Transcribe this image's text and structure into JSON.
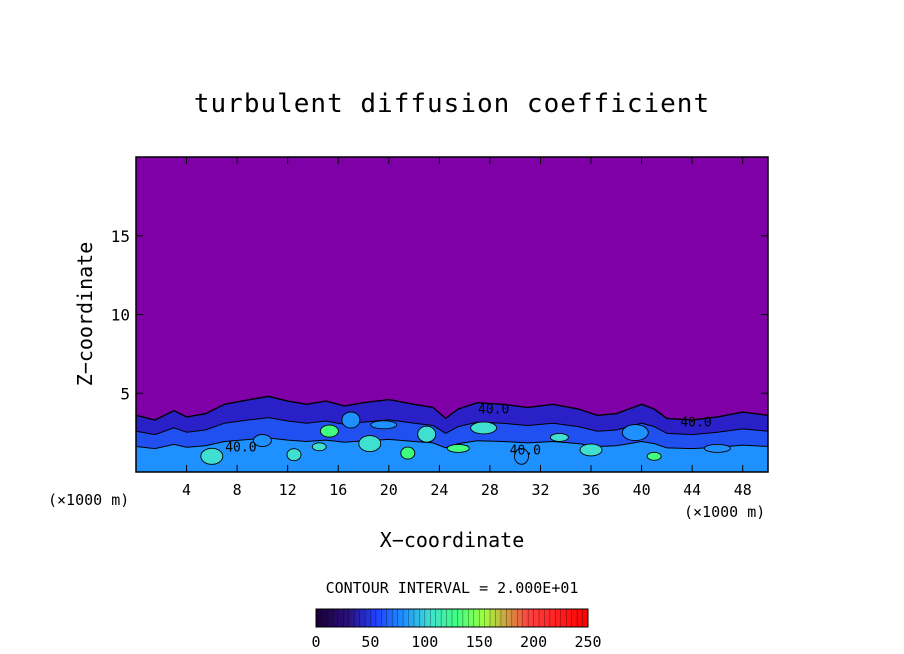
{
  "chart_data": {
    "type": "heatmap",
    "title": "turbulent diffusion coefficient",
    "xlabel": "X−coordinate",
    "ylabel": "Z−coordinate",
    "x_unit_left": "(×1000 m)",
    "x_unit_right": "(×1000 m)",
    "xlim": [
      0,
      50
    ],
    "ylim": [
      0,
      20
    ],
    "x_ticks": [
      4,
      8,
      12,
      16,
      20,
      24,
      28,
      32,
      36,
      40,
      44,
      48
    ],
    "y_ticks": [
      5,
      10,
      15
    ],
    "contour_interval_text": "CONTOUR INTERVAL = 2.000E+01",
    "contour_labels": [
      {
        "text": "40.0",
        "x": 28.3,
        "z": 3.7
      },
      {
        "text": "40.0",
        "x": 30.8,
        "z": 1.1
      },
      {
        "text": "40.0",
        "x": 8.3,
        "z": 1.3
      },
      {
        "text": "40.0",
        "x": 44.3,
        "z": 2.9
      }
    ],
    "colorbar": {
      "min": 0,
      "max": 250,
      "ticks": [
        0,
        50,
        100,
        150,
        200,
        250
      ],
      "colors": [
        "#1a0033",
        "#2a1080",
        "#2040ff",
        "#1e90ff",
        "#40e0d0",
        "#40ff80",
        "#a0ff40",
        "#ff4040",
        "#ff0000"
      ]
    },
    "background_color": "#8000a8",
    "turbulent_layer_top_km": 5.2,
    "turbulent_layer_profile": [
      [
        0,
        3.6
      ],
      [
        1.5,
        3.3
      ],
      [
        3,
        3.9
      ],
      [
        4,
        3.5
      ],
      [
        5.5,
        3.7
      ],
      [
        7,
        4.3
      ],
      [
        9,
        4.6
      ],
      [
        10.5,
        4.8
      ],
      [
        12,
        4.5
      ],
      [
        13.5,
        4.3
      ],
      [
        15,
        4.5
      ],
      [
        16.5,
        4.2
      ],
      [
        18,
        4.4
      ],
      [
        20,
        4.6
      ],
      [
        22,
        4.3
      ],
      [
        23.5,
        4.1
      ],
      [
        24.5,
        3.4
      ],
      [
        25.5,
        4.0
      ],
      [
        27,
        4.4
      ],
      [
        29,
        4.3
      ],
      [
        31,
        4.1
      ],
      [
        33,
        4.3
      ],
      [
        35,
        4.0
      ],
      [
        36.5,
        3.6
      ],
      [
        38,
        3.7
      ],
      [
        40,
        4.3
      ],
      [
        41,
        4.0
      ],
      [
        42,
        3.4
      ],
      [
        44,
        3.3
      ],
      [
        46,
        3.5
      ],
      [
        48,
        3.8
      ],
      [
        50,
        3.6
      ]
    ]
  }
}
